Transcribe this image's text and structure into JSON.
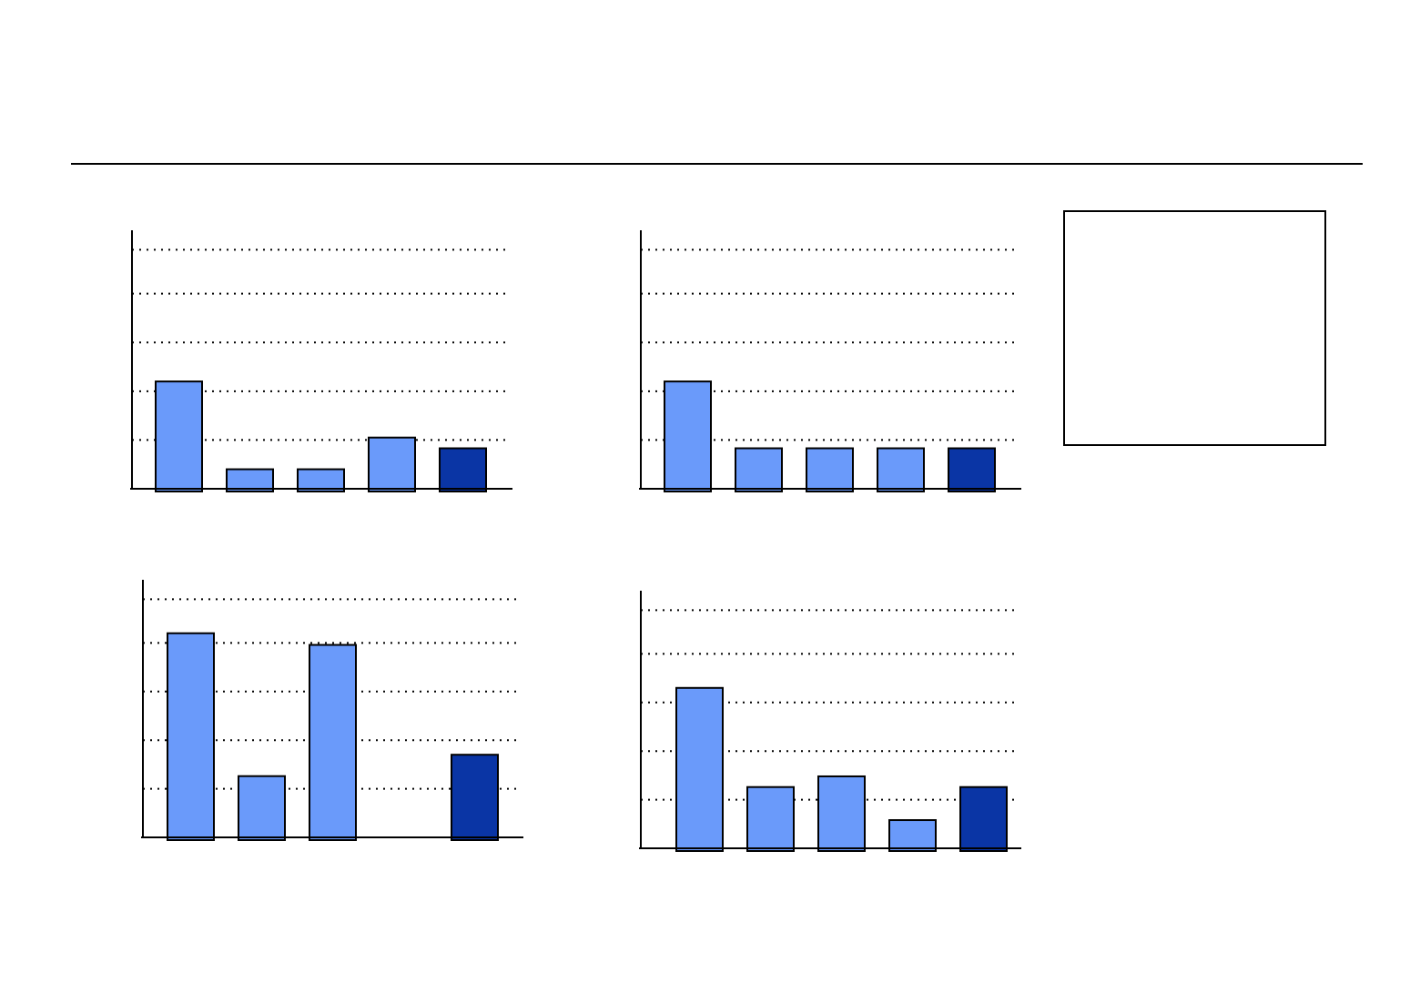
{
  "chart_data": [
    {
      "type": "bar",
      "categories": [
        null,
        null,
        null,
        null,
        null
      ],
      "values": [
        2.2,
        0.4,
        0.4,
        1.05,
        0.83
      ],
      "colors": [
        "#6a9afa",
        "#6a9afa",
        "#6a9afa",
        "#6a9afa",
        "#0a35a5"
      ],
      "ylim": [
        0,
        5.3
      ],
      "yticks": [
        1,
        2,
        3,
        4,
        4.9
      ],
      "grid": true
    },
    {
      "type": "bar",
      "categories": [
        null,
        null,
        null,
        null,
        null
      ],
      "values": [
        2.2,
        0.83,
        0.83,
        0.83,
        0.83
      ],
      "colors": [
        "#6a9afa",
        "#6a9afa",
        "#6a9afa",
        "#6a9afa",
        "#0a35a5"
      ],
      "ylim": [
        0,
        5.3
      ],
      "yticks": [
        1,
        2,
        3,
        4,
        4.9
      ],
      "grid": true
    },
    {
      "type": "bar",
      "categories": [
        null,
        null,
        null,
        null,
        null
      ],
      "values": [
        4.2,
        1.26,
        3.96,
        null,
        1.7
      ],
      "colors": [
        "#6a9afa",
        "#6a9afa",
        "#6a9afa",
        "#6a9afa",
        "#0a35a5"
      ],
      "ylim": [
        0,
        5.3
      ],
      "yticks": [
        1,
        2,
        3,
        4,
        4.9
      ],
      "grid": true
    },
    {
      "type": "bar",
      "categories": [
        null,
        null,
        null,
        null,
        null
      ],
      "values": [
        3.3,
        1.26,
        1.48,
        0.58,
        1.26
      ],
      "colors": [
        "#6a9afa",
        "#6a9afa",
        "#6a9afa",
        "#6a9afa",
        "#0a35a5"
      ],
      "ylim": [
        0,
        5.3
      ],
      "yticks": [
        1,
        2,
        3,
        4,
        4.9
      ],
      "grid": true
    }
  ]
}
